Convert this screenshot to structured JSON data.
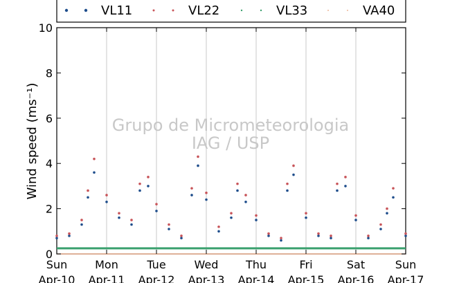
{
  "chart_data": {
    "type": "scatter",
    "title": "",
    "xlabel": "",
    "ylabel": "Wind speed (ms⁻¹)",
    "ylim": [
      0,
      10
    ],
    "xlim": [
      "2016-04-10",
      "2016-04-17"
    ],
    "yticks": [
      0,
      2,
      4,
      6,
      8,
      10
    ],
    "x_ticks": [
      {
        "date": "2016-04-10",
        "day": "Sun",
        "label": "Apr-10"
      },
      {
        "date": "2016-04-11",
        "day": "Mon",
        "label": "Apr-11"
      },
      {
        "date": "2016-04-12",
        "day": "Tue",
        "label": "Apr-12"
      },
      {
        "date": "2016-04-13",
        "day": "Wed",
        "label": "Apr-13"
      },
      {
        "date": "2016-04-14",
        "day": "Thu",
        "label": "Apr-14"
      },
      {
        "date": "2016-04-15",
        "day": "Fri",
        "label": "Apr-15"
      },
      {
        "date": "2016-04-16",
        "day": "Sat",
        "label": "Apr-16"
      },
      {
        "date": "2016-04-17",
        "day": "Sun",
        "label": "Apr-17"
      }
    ],
    "grid": "vertical",
    "legend": "top",
    "watermark": [
      "Grupo de Micrometeorologia",
      "IAG / USP"
    ],
    "series": [
      {
        "name": "VL11",
        "color": "#1f4e8c",
        "x": [
          "2016-04-10",
          "2016-04-10 06:00",
          "2016-04-10 12:00",
          "2016-04-10 15:00",
          "2016-04-10 18:00",
          "2016-04-11",
          "2016-04-11 06:00",
          "2016-04-11 12:00",
          "2016-04-11 16:00",
          "2016-04-11 20:00",
          "2016-04-12",
          "2016-04-12 06:00",
          "2016-04-12 12:00",
          "2016-04-12 17:00",
          "2016-04-12 20:00",
          "2016-04-13",
          "2016-04-13 06:00",
          "2016-04-13 12:00",
          "2016-04-13 15:00",
          "2016-04-13 19:00",
          "2016-04-14",
          "2016-04-14 06:00",
          "2016-04-14 12:00",
          "2016-04-14 15:00",
          "2016-04-14 18:00",
          "2016-04-15",
          "2016-04-15 06:00",
          "2016-04-15 12:00",
          "2016-04-15 15:00",
          "2016-04-15 19:00",
          "2016-04-16",
          "2016-04-16 06:00",
          "2016-04-16 12:00",
          "2016-04-16 15:00",
          "2016-04-16 18:00",
          "2016-04-17"
        ],
        "values": [
          0.7,
          0.8,
          1.3,
          2.5,
          3.6,
          2.3,
          1.6,
          1.3,
          2.8,
          3.0,
          1.9,
          1.1,
          0.7,
          2.6,
          3.9,
          2.4,
          1.0,
          1.6,
          2.8,
          2.3,
          1.5,
          0.8,
          0.6,
          2.8,
          3.5,
          1.6,
          0.8,
          0.7,
          2.8,
          3.0,
          1.5,
          0.7,
          1.1,
          1.8,
          2.5,
          0.8
        ]
      },
      {
        "name": "VL22",
        "color": "#c8555a",
        "x": [
          "2016-04-10",
          "2016-04-10 06:00",
          "2016-04-10 12:00",
          "2016-04-10 15:00",
          "2016-04-10 18:00",
          "2016-04-11",
          "2016-04-11 06:00",
          "2016-04-11 12:00",
          "2016-04-11 16:00",
          "2016-04-11 20:00",
          "2016-04-12",
          "2016-04-12 06:00",
          "2016-04-12 12:00",
          "2016-04-12 17:00",
          "2016-04-12 20:00",
          "2016-04-13",
          "2016-04-13 06:00",
          "2016-04-13 12:00",
          "2016-04-13 15:00",
          "2016-04-13 19:00",
          "2016-04-14",
          "2016-04-14 06:00",
          "2016-04-14 12:00",
          "2016-04-14 15:00",
          "2016-04-14 18:00",
          "2016-04-15",
          "2016-04-15 06:00",
          "2016-04-15 12:00",
          "2016-04-15 15:00",
          "2016-04-15 19:00",
          "2016-04-16",
          "2016-04-16 06:00",
          "2016-04-16 12:00",
          "2016-04-16 15:00",
          "2016-04-16 18:00",
          "2016-04-17"
        ],
        "values": [
          0.8,
          0.9,
          1.5,
          2.8,
          4.2,
          2.6,
          1.8,
          1.5,
          3.1,
          3.4,
          2.2,
          1.3,
          0.8,
          2.9,
          4.3,
          2.7,
          1.2,
          1.8,
          3.1,
          2.6,
          1.7,
          0.9,
          0.7,
          3.1,
          3.9,
          1.8,
          0.9,
          0.8,
          3.1,
          3.4,
          1.7,
          0.8,
          1.3,
          2.0,
          2.9,
          0.9
        ]
      },
      {
        "name": "VL33",
        "color": "#3aa06e",
        "x": [
          "2016-04-10",
          "2016-04-17"
        ],
        "values": [
          0.25,
          0.25
        ]
      },
      {
        "name": "VA40",
        "color": "#e8a07a",
        "x": [
          "2016-04-10",
          "2016-04-17"
        ],
        "values": [
          0.0,
          0.0
        ]
      }
    ]
  }
}
